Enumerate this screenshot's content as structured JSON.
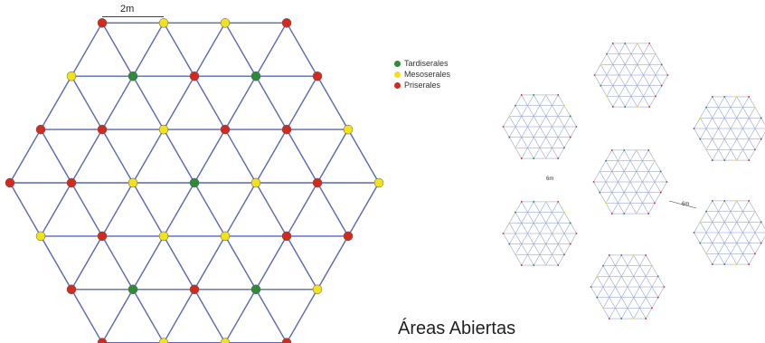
{
  "scale_label": "2m",
  "legend": [
    {
      "label": "Tardiserales",
      "color": "#2e8b3a"
    },
    {
      "label": "Mesoserales",
      "color": "#f2e21a"
    },
    {
      "label": "Priserales",
      "color": "#d42a1e"
    }
  ],
  "distance_labels": [
    "6m",
    "6m"
  ],
  "caption": "Áreas Abiertas",
  "colors": {
    "line": "#5a67b8",
    "lineSmall": "#9aa6d4"
  },
  "large_hexagon_rows": [
    "RYYR",
    "YGRGR",
    "RRYRRY",
    "RRYGYRY",
    "YRYYRR",
    "RGRGY",
    "RYYR"
  ]
}
